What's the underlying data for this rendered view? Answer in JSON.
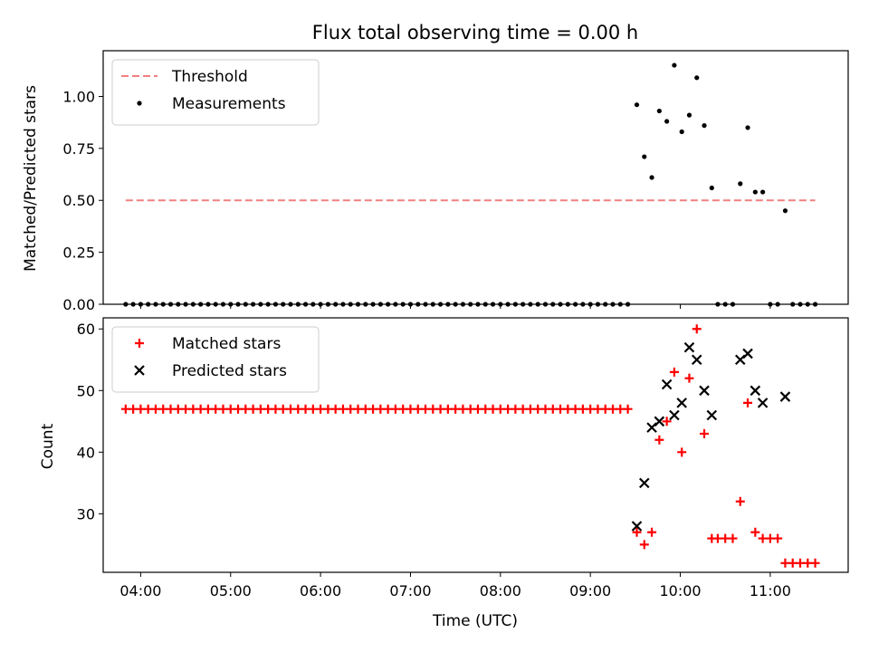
{
  "chart_data": [
    {
      "type": "scatter",
      "title": "Flux total observing time = 0.00 h",
      "xlabel": "",
      "ylabel": "Matched/Predicted stars",
      "xlim": [
        "03:35",
        "11:52"
      ],
      "ylim": [
        0,
        1.22
      ],
      "yticks": [
        0,
        0.25,
        0.5,
        0.75,
        1.0
      ],
      "ytick_labels": [
        "0.00",
        "0.25",
        "0.50",
        "0.75",
        "1.00"
      ],
      "grid": false,
      "legend_position": "top-left",
      "threshold": {
        "name": "Threshold",
        "value": 0.5,
        "x_range": [
          "03:50",
          "11:30"
        ],
        "color": "#f08080"
      },
      "series": [
        {
          "name": "Measurements",
          "marker": "dot",
          "color": "#000000",
          "points": [
            [
              "03:50",
              0
            ],
            [
              "03:55",
              0
            ],
            [
              "04:00",
              0
            ],
            [
              "04:05",
              0
            ],
            [
              "04:10",
              0
            ],
            [
              "04:15",
              0
            ],
            [
              "04:20",
              0
            ],
            [
              "04:25",
              0
            ],
            [
              "04:30",
              0
            ],
            [
              "04:35",
              0
            ],
            [
              "04:40",
              0
            ],
            [
              "04:45",
              0
            ],
            [
              "04:50",
              0
            ],
            [
              "04:55",
              0
            ],
            [
              "05:00",
              0
            ],
            [
              "05:05",
              0
            ],
            [
              "05:10",
              0
            ],
            [
              "05:15",
              0
            ],
            [
              "05:20",
              0
            ],
            [
              "05:25",
              0
            ],
            [
              "05:30",
              0
            ],
            [
              "05:35",
              0
            ],
            [
              "05:40",
              0
            ],
            [
              "05:45",
              0
            ],
            [
              "05:50",
              0
            ],
            [
              "05:55",
              0
            ],
            [
              "06:00",
              0
            ],
            [
              "06:05",
              0
            ],
            [
              "06:10",
              0
            ],
            [
              "06:15",
              0
            ],
            [
              "06:20",
              0
            ],
            [
              "06:25",
              0
            ],
            [
              "06:30",
              0
            ],
            [
              "06:35",
              0
            ],
            [
              "06:40",
              0
            ],
            [
              "06:45",
              0
            ],
            [
              "06:50",
              0
            ],
            [
              "06:55",
              0
            ],
            [
              "07:00",
              0
            ],
            [
              "07:05",
              0
            ],
            [
              "07:10",
              0
            ],
            [
              "07:15",
              0
            ],
            [
              "07:20",
              0
            ],
            [
              "07:25",
              0
            ],
            [
              "07:30",
              0
            ],
            [
              "07:35",
              0
            ],
            [
              "07:40",
              0
            ],
            [
              "07:45",
              0
            ],
            [
              "07:50",
              0
            ],
            [
              "07:55",
              0
            ],
            [
              "08:00",
              0
            ],
            [
              "08:05",
              0
            ],
            [
              "08:10",
              0
            ],
            [
              "08:15",
              0
            ],
            [
              "08:20",
              0
            ],
            [
              "08:25",
              0
            ],
            [
              "08:30",
              0
            ],
            [
              "08:35",
              0
            ],
            [
              "08:40",
              0
            ],
            [
              "08:45",
              0
            ],
            [
              "08:50",
              0
            ],
            [
              "08:55",
              0
            ],
            [
              "09:00",
              0
            ],
            [
              "09:05",
              0
            ],
            [
              "09:10",
              0
            ],
            [
              "09:15",
              0
            ],
            [
              "09:20",
              0
            ],
            [
              "09:25",
              0
            ],
            [
              "09:31",
              0.96
            ],
            [
              "09:36",
              0.71
            ],
            [
              "09:41",
              0.61
            ],
            [
              "09:46",
              0.93
            ],
            [
              "09:51",
              0.88
            ],
            [
              "09:56",
              1.15
            ],
            [
              "10:01",
              0.83
            ],
            [
              "10:06",
              0.91
            ],
            [
              "10:11",
              1.09
            ],
            [
              "10:16",
              0.86
            ],
            [
              "10:21",
              0.56
            ],
            [
              "10:25",
              0
            ],
            [
              "10:30",
              0
            ],
            [
              "10:35",
              0
            ],
            [
              "10:40",
              0.58
            ],
            [
              "10:45",
              0.85
            ],
            [
              "10:50",
              0.54
            ],
            [
              "10:55",
              0.54
            ],
            [
              "11:00",
              0
            ],
            [
              "11:05",
              0
            ],
            [
              "11:10",
              0.45
            ],
            [
              "11:15",
              0
            ],
            [
              "11:20",
              0
            ],
            [
              "11:25",
              0
            ],
            [
              "11:30",
              0
            ]
          ]
        }
      ]
    },
    {
      "type": "scatter",
      "title": "",
      "xlabel": "Time (UTC)",
      "ylabel": "Count",
      "xlim": [
        "03:35",
        "11:52"
      ],
      "ylim": [
        20.5,
        61.8
      ],
      "yticks": [
        30,
        40,
        50,
        60
      ],
      "xticks": [
        "04:00",
        "05:00",
        "06:00",
        "07:00",
        "08:00",
        "09:00",
        "10:00",
        "11:00"
      ],
      "grid": false,
      "legend_position": "top-left",
      "series": [
        {
          "name": "Matched stars",
          "marker": "plus",
          "color": "#ff0000",
          "points": [
            [
              "03:50",
              47
            ],
            [
              "03:55",
              47
            ],
            [
              "04:00",
              47
            ],
            [
              "04:05",
              47
            ],
            [
              "04:10",
              47
            ],
            [
              "04:15",
              47
            ],
            [
              "04:20",
              47
            ],
            [
              "04:25",
              47
            ],
            [
              "04:30",
              47
            ],
            [
              "04:35",
              47
            ],
            [
              "04:40",
              47
            ],
            [
              "04:45",
              47
            ],
            [
              "04:50",
              47
            ],
            [
              "04:55",
              47
            ],
            [
              "05:00",
              47
            ],
            [
              "05:05",
              47
            ],
            [
              "05:10",
              47
            ],
            [
              "05:15",
              47
            ],
            [
              "05:20",
              47
            ],
            [
              "05:25",
              47
            ],
            [
              "05:30",
              47
            ],
            [
              "05:35",
              47
            ],
            [
              "05:40",
              47
            ],
            [
              "05:45",
              47
            ],
            [
              "05:50",
              47
            ],
            [
              "05:55",
              47
            ],
            [
              "06:00",
              47
            ],
            [
              "06:05",
              47
            ],
            [
              "06:10",
              47
            ],
            [
              "06:15",
              47
            ],
            [
              "06:20",
              47
            ],
            [
              "06:25",
              47
            ],
            [
              "06:30",
              47
            ],
            [
              "06:35",
              47
            ],
            [
              "06:40",
              47
            ],
            [
              "06:45",
              47
            ],
            [
              "06:50",
              47
            ],
            [
              "06:55",
              47
            ],
            [
              "07:00",
              47
            ],
            [
              "07:05",
              47
            ],
            [
              "07:10",
              47
            ],
            [
              "07:15",
              47
            ],
            [
              "07:20",
              47
            ],
            [
              "07:25",
              47
            ],
            [
              "07:30",
              47
            ],
            [
              "07:35",
              47
            ],
            [
              "07:40",
              47
            ],
            [
              "07:45",
              47
            ],
            [
              "07:50",
              47
            ],
            [
              "07:55",
              47
            ],
            [
              "08:00",
              47
            ],
            [
              "08:05",
              47
            ],
            [
              "08:10",
              47
            ],
            [
              "08:15",
              47
            ],
            [
              "08:20",
              47
            ],
            [
              "08:25",
              47
            ],
            [
              "08:30",
              47
            ],
            [
              "08:35",
              47
            ],
            [
              "08:40",
              47
            ],
            [
              "08:45",
              47
            ],
            [
              "08:50",
              47
            ],
            [
              "08:55",
              47
            ],
            [
              "09:00",
              47
            ],
            [
              "09:05",
              47
            ],
            [
              "09:10",
              47
            ],
            [
              "09:15",
              47
            ],
            [
              "09:20",
              47
            ],
            [
              "09:25",
              47
            ],
            [
              "09:31",
              27
            ],
            [
              "09:36",
              25
            ],
            [
              "09:41",
              27
            ],
            [
              "09:46",
              42
            ],
            [
              "09:51",
              45
            ],
            [
              "09:56",
              53
            ],
            [
              "10:01",
              40
            ],
            [
              "10:06",
              52
            ],
            [
              "10:11",
              60
            ],
            [
              "10:16",
              43
            ],
            [
              "10:21",
              26
            ],
            [
              "10:25",
              26
            ],
            [
              "10:30",
              26
            ],
            [
              "10:35",
              26
            ],
            [
              "10:40",
              32
            ],
            [
              "10:45",
              48
            ],
            [
              "10:50",
              27
            ],
            [
              "10:55",
              26
            ],
            [
              "11:00",
              26
            ],
            [
              "11:05",
              26
            ],
            [
              "11:10",
              22
            ],
            [
              "11:15",
              22
            ],
            [
              "11:20",
              22
            ],
            [
              "11:25",
              22
            ],
            [
              "11:30",
              22
            ]
          ]
        },
        {
          "name": "Predicted stars",
          "marker": "x",
          "color": "#000000",
          "points": [
            [
              "09:31",
              28
            ],
            [
              "09:36",
              35
            ],
            [
              "09:41",
              44
            ],
            [
              "09:46",
              45
            ],
            [
              "09:51",
              51
            ],
            [
              "09:56",
              46
            ],
            [
              "10:01",
              48
            ],
            [
              "10:06",
              57
            ],
            [
              "10:11",
              55
            ],
            [
              "10:16",
              50
            ],
            [
              "10:21",
              46
            ],
            [
              "10:40",
              55
            ],
            [
              "10:45",
              56
            ],
            [
              "10:50",
              50
            ],
            [
              "10:55",
              48
            ],
            [
              "11:10",
              49
            ]
          ]
        }
      ]
    }
  ]
}
